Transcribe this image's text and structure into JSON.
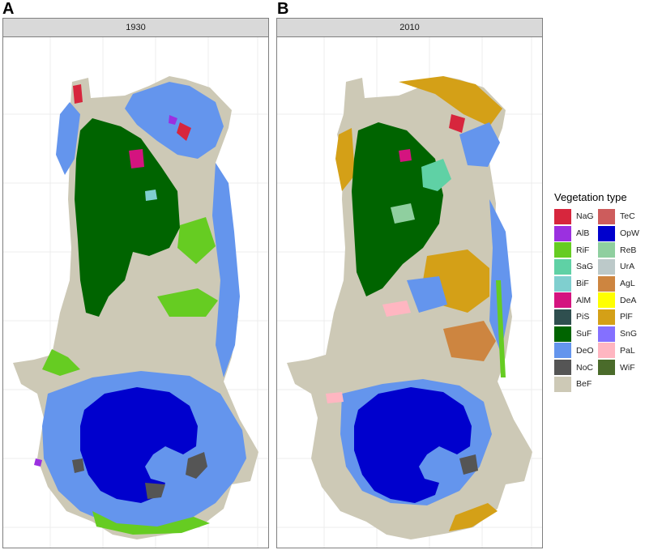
{
  "panels": [
    {
      "letter": "A",
      "year": "1930"
    },
    {
      "letter": "B",
      "year": "2010"
    }
  ],
  "legend": {
    "title": "Vegetation type",
    "items": [
      {
        "code": "NaG",
        "color": "#d7263d"
      },
      {
        "code": "TeC",
        "color": "#cd5c5c"
      },
      {
        "code": "AlB",
        "color": "#9b30e0"
      },
      {
        "code": "OpW",
        "color": "#0000cd"
      },
      {
        "code": "RiF",
        "color": "#66cc22"
      },
      {
        "code": "ReB",
        "color": "#8fcf9f"
      },
      {
        "code": "SaG",
        "color": "#5fd1a5"
      },
      {
        "code": "UrA",
        "color": "#bcc9c9"
      },
      {
        "code": "BiF",
        "color": "#7fcfcf"
      },
      {
        "code": "AgL",
        "color": "#cd8540"
      },
      {
        "code": "AlM",
        "color": "#d4147f"
      },
      {
        "code": "DeA",
        "color": "#ffff00"
      },
      {
        "code": "PiS",
        "color": "#2f4f4f"
      },
      {
        "code": "PlF",
        "color": "#d4a017"
      },
      {
        "code": "SuF",
        "color": "#006400"
      },
      {
        "code": "SnG",
        "color": "#8470ff"
      },
      {
        "code": "DeO",
        "color": "#6495ed"
      },
      {
        "code": "PaL",
        "color": "#ffb6c1"
      },
      {
        "code": "NoC",
        "color": "#555555"
      },
      {
        "code": "WiF",
        "color": "#4a6b2a"
      },
      {
        "code": "BeF",
        "color": "#cdc9b6"
      }
    ]
  }
}
